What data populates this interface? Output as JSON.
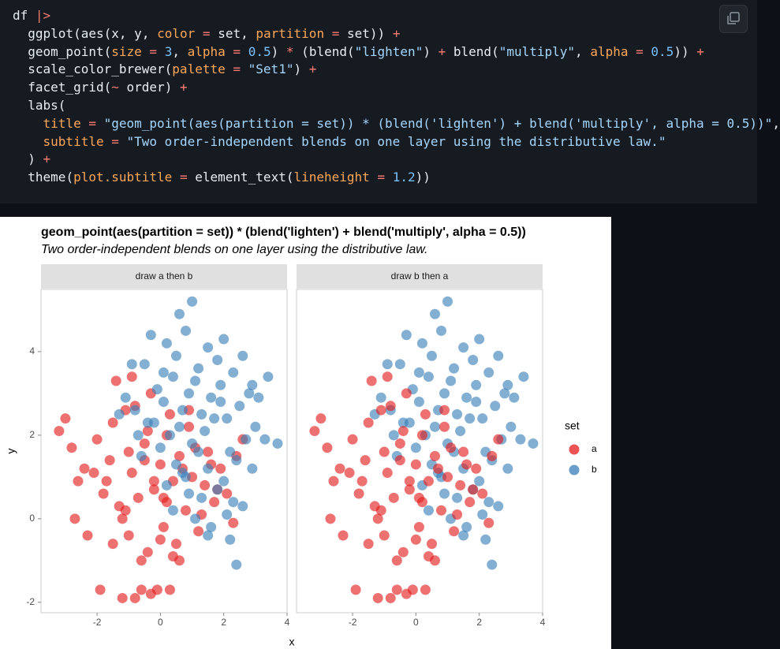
{
  "code": {
    "lines": [
      "df |>",
      "  ggplot(aes(x, y, color = set, partition = set)) +",
      "  geom_point(size = 3, alpha = 0.5) * (blend(\"lighten\") + blend(\"multiply\", alpha = 0.5)) +",
      "  scale_color_brewer(palette = \"Set1\") +",
      "  facet_grid(~ order) +",
      "  labs(",
      "    title = \"geom_point(aes(partition = set)) * (blend('lighten') + blend('multiply', alpha = 0.5))\",",
      "    subtitle = \"Two order-independent blends on one layer using the distributive law.\"",
      "  ) +",
      "  theme(plot.subtitle = element_text(lineheight = 1.2))"
    ]
  },
  "chart_data": {
    "type": "scatter",
    "title": "geom_point(aes(partition = set)) * (blend('lighten') + blend('multiply', alpha = 0.5))",
    "subtitle": "Two order-independent blends on one layer using the distributive law.",
    "facets": [
      "draw a then b",
      "draw b then a"
    ],
    "x_label": "x",
    "y_label": "y",
    "legend_title": "set",
    "xlim": [
      -3.77,
      4.0
    ],
    "ylim": [
      -2.25,
      5.49
    ],
    "xticks": [
      -2,
      0,
      2,
      4
    ],
    "yticks": [
      -2,
      0,
      2,
      4
    ],
    "series": [
      {
        "name": "a",
        "color": "#e41a1c",
        "x": [
          -3.2,
          -3.0,
          -2.7,
          -2.3,
          -1.9,
          -1.2,
          -0.8,
          -0.6,
          -0.3,
          -0.1,
          0.3,
          -2.8,
          -2.6,
          -2.4,
          -2.0,
          -1.8,
          -1.6,
          -1.5,
          -1.3,
          -1.1,
          -1.0,
          -0.9,
          -0.7,
          -0.5,
          -0.4,
          -0.2,
          0.0,
          0.1,
          0.2,
          0.4,
          0.5,
          0.6,
          0.8,
          0.9,
          1.0,
          1.2,
          1.4,
          1.5,
          1.7,
          1.9,
          2.1,
          2.3,
          2.6,
          -1.4,
          -1.2,
          -0.8,
          -0.6,
          -0.3,
          0.0,
          0.3,
          0.6,
          1.1,
          -1.7,
          -1.0,
          -0.4,
          0.2,
          0.7,
          1.3,
          -2.1,
          -1.5,
          -0.9,
          -0.2,
          0.4,
          1.6,
          -1.1,
          -0.5,
          0.1,
          0.9,
          1.8,
          2.4
        ],
        "values": [
          2.1,
          2.4,
          0.0,
          -0.4,
          -1.7,
          -1.9,
          -1.9,
          -1.7,
          -1.8,
          -1.7,
          -1.7,
          1.7,
          0.9,
          1.2,
          1.9,
          0.6,
          1.4,
          2.3,
          0.3,
          2.6,
          -0.4,
          1.1,
          0.5,
          1.8,
          -0.8,
          0.7,
          1.3,
          -0.2,
          2.0,
          0.9,
          -0.6,
          1.5,
          0.2,
          2.2,
          1.0,
          -0.3,
          0.8,
          1.6,
          0.4,
          1.2,
          0.6,
          -0.1,
          1.9,
          3.3,
          0.0,
          2.7,
          -1.0,
          3.0,
          -0.5,
          2.5,
          -1.0,
          1.7,
          0.9,
          1.6,
          2.1,
          0.4,
          1.2,
          0.1,
          1.1,
          -0.6,
          3.4,
          0.9,
          -0.9,
          1.3,
          0.2,
          1.4,
          0.5,
          2.6,
          0.7,
          1.5
        ]
      },
      {
        "name": "b",
        "color": "#377eb8",
        "x": [
          1.0,
          0.6,
          -0.3,
          2.4,
          3.4,
          3.7,
          2.2,
          0.2,
          0.5,
          0.8,
          1.2,
          1.5,
          1.8,
          2.0,
          2.3,
          2.6,
          2.9,
          3.1,
          -0.5,
          -0.1,
          0.1,
          0.4,
          0.7,
          0.9,
          1.1,
          1.3,
          1.6,
          1.9,
          2.1,
          2.5,
          2.8,
          3.3,
          -0.8,
          -0.2,
          0.3,
          0.6,
          1.0,
          1.4,
          1.7,
          2.2,
          2.7,
          3.0,
          -1.1,
          -0.6,
          0.0,
          0.5,
          0.8,
          1.2,
          1.5,
          2.0,
          2.4,
          -0.4,
          0.2,
          0.9,
          1.3,
          1.8,
          2.6,
          -1.3,
          -0.7,
          0.4,
          1.1,
          1.6,
          2.1,
          2.9,
          0.7,
          1.5,
          2.3,
          -0.9,
          0.1,
          1.9
        ],
        "values": [
          5.2,
          4.9,
          4.4,
          -1.1,
          3.4,
          1.8,
          -0.5,
          4.2,
          3.9,
          4.5,
          3.6,
          4.1,
          3.8,
          4.3,
          3.5,
          3.9,
          3.2,
          2.9,
          3.7,
          3.1,
          2.8,
          3.4,
          2.6,
          3.0,
          3.3,
          2.5,
          2.9,
          3.2,
          2.4,
          2.7,
          3.0,
          1.9,
          2.6,
          2.3,
          2.0,
          2.2,
          1.8,
          2.1,
          2.4,
          1.6,
          1.9,
          2.2,
          2.9,
          1.5,
          1.7,
          1.3,
          1.0,
          1.6,
          1.2,
          0.9,
          1.4,
          2.3,
          0.8,
          0.6,
          0.5,
          0.7,
          0.3,
          2.5,
          2.0,
          0.2,
          0.0,
          -0.2,
          0.1,
          1.2,
          1.1,
          -0.4,
          0.4,
          3.7,
          3.5,
          2.8
        ]
      }
    ]
  }
}
